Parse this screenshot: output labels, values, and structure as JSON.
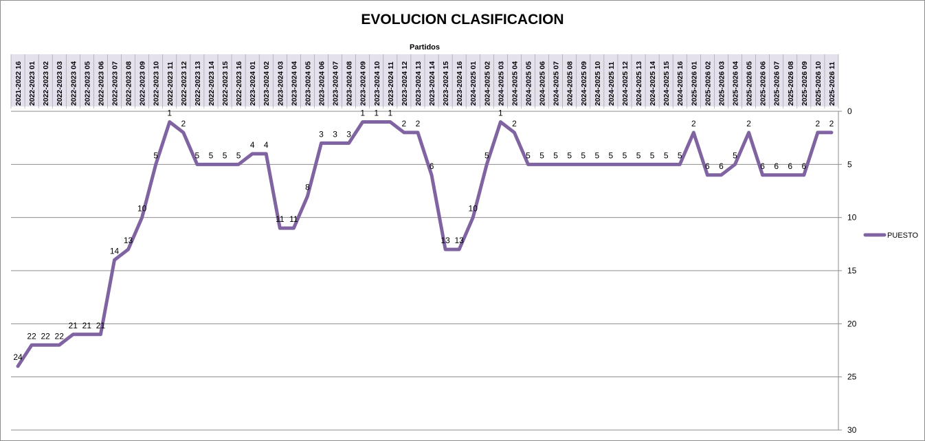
{
  "chart_data": {
    "type": "line",
    "title": "EVOLUCION CLASIFICACION",
    "xlabel": "Partidos",
    "ylabel": "",
    "ylim": [
      0,
      30
    ],
    "y_inverted": true,
    "x_axis_position": "top",
    "y_axis_position": "right",
    "yticks": [
      0,
      5,
      10,
      15,
      20,
      25,
      30
    ],
    "grid": true,
    "legend_position": "right",
    "categories": [
      "2021-2022 16",
      "2022-2023 01",
      "2022-2023 02",
      "2022-2023 03",
      "2022-2023 04",
      "2022-2023 05",
      "2022-2023 06",
      "2022-2023 07",
      "2022-2023 08",
      "2022-2023 09",
      "2022-2023 10",
      "2022-2023 11",
      "2022-2023 12",
      "2022-2023 13",
      "2022-2023 14",
      "2022-2023 15",
      "2022-2023 16",
      "2023-2024 01",
      "2023-2024 02",
      "2023-2024 03",
      "2023-2024 04",
      "2023-2024 05",
      "2023-2024 06",
      "2023-2024 07",
      "2023-2024 08",
      "2023-2024 09",
      "2023-2024 10",
      "2023-2024 11",
      "2023-2024 12",
      "2023-2024 13",
      "2023-2024 14",
      "2023-2024 15",
      "2023-2024 16",
      "2024-2025 01",
      "2024-2025 02",
      "2024-2025 03",
      "2024-2025 04",
      "2024-2025 05",
      "2024-2025 06",
      "2024-2025 07",
      "2024-2025 08",
      "2024-2025 09",
      "2024-2025 10",
      "2024-2025 11",
      "2024-2025 12",
      "2024-2025 13",
      "2024-2025 14",
      "2024-2025 15",
      "2024-2025 16",
      "2025-2026 01",
      "2025-2026 02",
      "2025-2026 03",
      "2025-2026 04",
      "2025-2026 05",
      "2025-2026 06",
      "2025-2026 07",
      "2025-2026 08",
      "2025-2026 09",
      "2025-2026 10",
      "2025-2026 11"
    ],
    "series": [
      {
        "name": "PUESTO",
        "color": "#8064a2",
        "values": [
          24,
          22,
          22,
          22,
          21,
          21,
          21,
          14,
          13,
          10,
          5,
          1,
          2,
          5,
          5,
          5,
          5,
          4,
          4,
          11,
          11,
          8,
          3,
          3,
          3,
          1,
          1,
          1,
          2,
          2,
          6,
          13,
          13,
          10,
          5,
          1,
          2,
          5,
          5,
          5,
          5,
          5,
          5,
          5,
          5,
          5,
          5,
          5,
          5,
          2,
          6,
          6,
          5,
          2,
          6,
          6,
          6,
          6,
          2,
          2
        ]
      }
    ],
    "colors": {
      "line": "#8064a2",
      "category_band": "#e4e0ec",
      "grid": "#8c8c8c",
      "text": "#000000"
    }
  }
}
